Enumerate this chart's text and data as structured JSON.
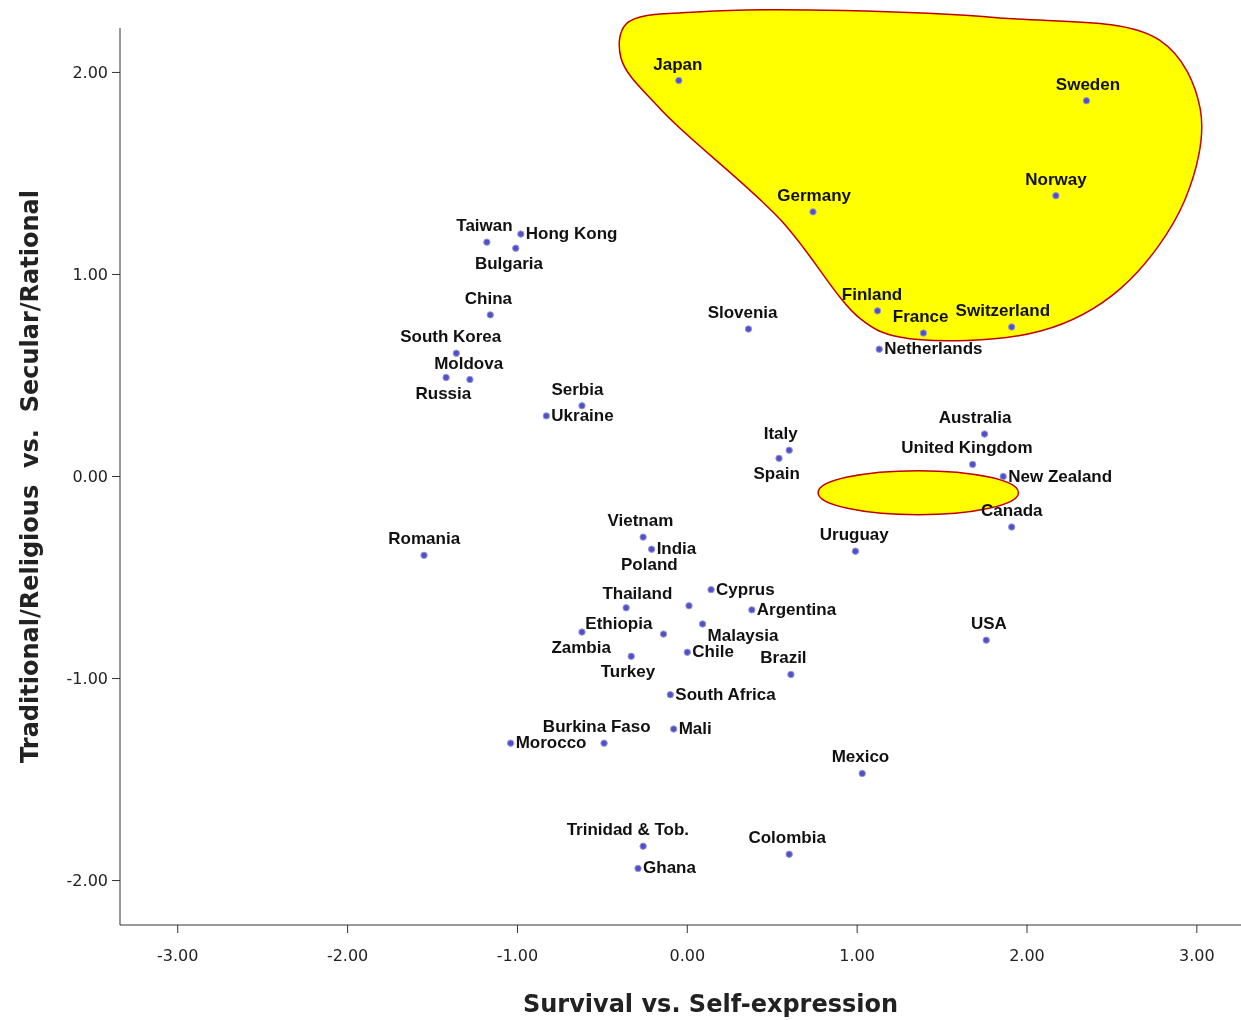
{
  "chart_data": {
    "type": "scatter",
    "xlabel": "Survival  vs. Self-expression",
    "ylabel": "Traditional/Religious  vs.  Secular/Rational",
    "marker": "circle",
    "xlim": [
      -3.34,
      3.26
    ],
    "ylim": [
      -2.22,
      2.22
    ],
    "xticks": [
      {
        "value": -3,
        "label": "-3.00"
      },
      {
        "value": -2,
        "label": "-2.00"
      },
      {
        "value": -1,
        "label": "-1.00"
      },
      {
        "value": 0,
        "label": "0.00"
      },
      {
        "value": 1,
        "label": "1.00"
      },
      {
        "value": 2,
        "label": "2.00"
      },
      {
        "value": 3,
        "label": "3.00"
      }
    ],
    "yticks": [
      {
        "value": -2,
        "label": "-2.00"
      },
      {
        "value": -1,
        "label": "-1.00"
      },
      {
        "value": 0,
        "label": "0.00"
      },
      {
        "value": 1,
        "label": "1.00"
      },
      {
        "value": 2,
        "label": "2.00"
      }
    ],
    "series": [
      {
        "color": "#5050c8",
        "x": [
          -0.05,
          2.35,
          2.17,
          0.74,
          1.12,
          1.91,
          1.39,
          1.13,
          0.36,
          -1.18,
          -0.98,
          -1.01,
          -1.16,
          -1.36,
          -1.42,
          -1.28,
          -0.83,
          -0.62,
          0.6,
          0.54,
          1.75,
          1.68,
          1.86,
          1.91,
          -1.55,
          -0.26,
          -0.21,
          0.99,
          0.14,
          0.01,
          -0.36,
          0.38,
          0.09,
          -0.62,
          -0.14,
          0,
          -0.33,
          -0.1,
          0.61,
          1.76,
          -0.49,
          -1.04,
          -0.08,
          1.03,
          -0.26,
          -0.29,
          0.6
        ],
        "values": [
          1.96,
          1.86,
          1.39,
          1.31,
          0.82,
          0.74,
          0.71,
          0.63,
          0.73,
          1.16,
          1.2,
          1.13,
          0.8,
          0.61,
          0.49,
          0.48,
          0.3,
          0.35,
          0.13,
          0.09,
          0.21,
          0.06,
          0,
          -0.25,
          -0.39,
          -0.3,
          -0.36,
          -0.37,
          -0.56,
          -0.64,
          -0.65,
          -0.66,
          -0.73,
          -0.77,
          -0.78,
          -0.87,
          -0.89,
          -1.08,
          -0.98,
          -0.81,
          -1.32,
          -1.32,
          -1.25,
          -1.47,
          -1.83,
          -1.94,
          -1.87
        ]
      }
    ],
    "annotations": [
      {
        "text": "Japan",
        "x": -0.05,
        "y": 1.96
      },
      {
        "text": "Sweden",
        "x": 2.35,
        "y": 1.86
      },
      {
        "text": "Norway",
        "x": 2.17,
        "y": 1.39
      },
      {
        "text": "Germany",
        "x": 0.74,
        "y": 1.31
      },
      {
        "text": "Finland",
        "x": 1.12,
        "y": 0.82
      },
      {
        "text": "Switzerland",
        "x": 1.91,
        "y": 0.74
      },
      {
        "text": "France",
        "x": 1.39,
        "y": 0.71
      },
      {
        "text": "Netherlands",
        "x": 1.13,
        "y": 0.63
      },
      {
        "text": "Slovenia",
        "x": 0.36,
        "y": 0.73
      },
      {
        "text": "Taiwan",
        "x": -1.18,
        "y": 1.16
      },
      {
        "text": "Hong Kong",
        "x": -0.98,
        "y": 1.2
      },
      {
        "text": "Bulgaria",
        "x": -1.01,
        "y": 1.13
      },
      {
        "text": "China",
        "x": -1.16,
        "y": 0.8
      },
      {
        "text": "South Korea",
        "x": -1.36,
        "y": 0.61
      },
      {
        "text": "Russia",
        "x": -1.42,
        "y": 0.49
      },
      {
        "text": "Moldova",
        "x": -1.28,
        "y": 0.48
      },
      {
        "text": "Ukraine",
        "x": -0.83,
        "y": 0.3
      },
      {
        "text": "Serbia",
        "x": -0.62,
        "y": 0.35
      },
      {
        "text": "Italy",
        "x": 0.6,
        "y": 0.13
      },
      {
        "text": "Spain",
        "x": 0.54,
        "y": 0.09
      },
      {
        "text": "Australia",
        "x": 1.75,
        "y": 0.21
      },
      {
        "text": "United Kingdom",
        "x": 1.68,
        "y": 0.06
      },
      {
        "text": "New Zealand",
        "x": 1.86,
        "y": 0
      },
      {
        "text": "Canada",
        "x": 1.91,
        "y": -0.25
      },
      {
        "text": "Romania",
        "x": -1.55,
        "y": -0.39
      },
      {
        "text": "Vietnam",
        "x": -0.26,
        "y": -0.3
      },
      {
        "text": "India",
        "x": -0.21,
        "y": -0.36
      },
      {
        "text": "Poland",
        "x": -0.21,
        "y": -0.36
      },
      {
        "text": "Uruguay",
        "x": 0.99,
        "y": -0.37
      },
      {
        "text": "Cyprus",
        "x": 0.14,
        "y": -0.56
      },
      {
        "text": "Thailand",
        "x": 0.01,
        "y": -0.64
      },
      {
        "text": "Ethiopia",
        "x": -0.36,
        "y": -0.65
      },
      {
        "text": "Argentina",
        "x": 0.38,
        "y": -0.66
      },
      {
        "text": "Malaysia",
        "x": 0.09,
        "y": -0.73
      },
      {
        "text": "Zambia",
        "x": -0.62,
        "y": -0.77
      },
      {
        "text": "Chile",
        "x": 0,
        "y": -0.87
      },
      {
        "text": "Turkey",
        "x": -0.33,
        "y": -0.89
      },
      {
        "text": "South Africa",
        "x": -0.1,
        "y": -1.08
      },
      {
        "text": "Brazil",
        "x": 0.61,
        "y": -0.98
      },
      {
        "text": "USA",
        "x": 1.76,
        "y": -0.81
      },
      {
        "text": "Burkina Faso",
        "x": -0.49,
        "y": -1.32
      },
      {
        "text": "Morocco",
        "x": -1.04,
        "y": -1.32
      },
      {
        "text": "Mali",
        "x": -0.08,
        "y": -1.25
      },
      {
        "text": "Mexico",
        "x": 1.03,
        "y": -1.47
      },
      {
        "text": "Trinidad & Tob.",
        "x": -0.26,
        "y": -1.83
      },
      {
        "text": "Ghana",
        "x": -0.29,
        "y": -1.94
      },
      {
        "text": "Colombia",
        "x": 0.6,
        "y": -1.87
      }
    ]
  }
}
